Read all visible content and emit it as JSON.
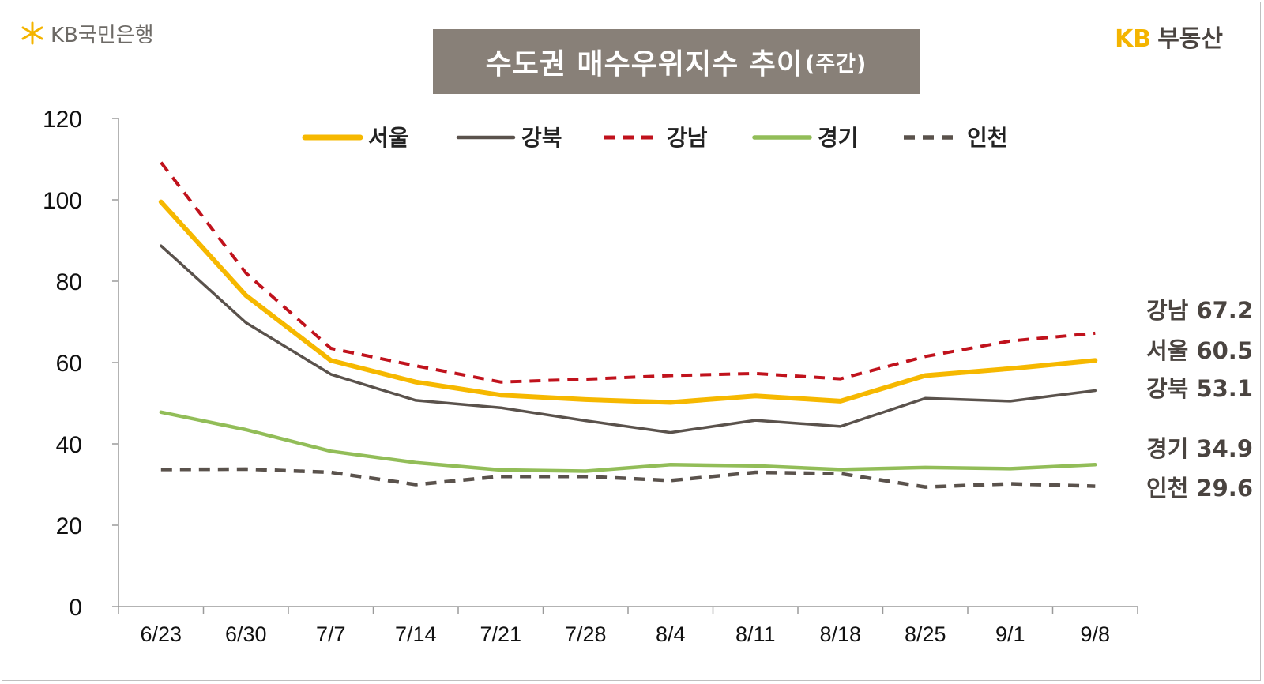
{
  "branding": {
    "left_logo_text": "KB국민은행",
    "left_logo_icon": "kb-star-icon",
    "right_logo_kb": "KB",
    "right_logo_text": "부동산"
  },
  "title": {
    "main": "수도권 매수우위지수 추이",
    "sub": "(주간)"
  },
  "colors": {
    "서울": "#f6b800",
    "강북": "#5a524c",
    "강남": "#c0121c",
    "경기": "#92bd58",
    "인천": "#5a524c",
    "title_bg": "#888078"
  },
  "chart_data": {
    "type": "line",
    "title": "수도권 매수우위지수 추이(주간)",
    "xlabel": "",
    "ylabel": "",
    "categories": [
      "6/23",
      "6/30",
      "7/7",
      "7/14",
      "7/21",
      "7/28",
      "8/4",
      "8/11",
      "8/18",
      "8/25",
      "9/1",
      "9/8"
    ],
    "yticks": [
      0,
      20,
      40,
      60,
      80,
      100,
      120
    ],
    "ylim": [
      0,
      120
    ],
    "grid": false,
    "legend_position": "top",
    "series": [
      {
        "name": "서울",
        "style": "solid",
        "values": [
          99.5,
          76.5,
          60.5,
          55.2,
          52.0,
          50.9,
          50.2,
          51.8,
          50.5,
          56.8,
          58.5,
          60.5
        ]
      },
      {
        "name": "강북",
        "style": "solid",
        "values": [
          88.7,
          69.8,
          57.1,
          50.7,
          48.9,
          45.7,
          42.8,
          45.8,
          44.3,
          51.2,
          50.5,
          53.1
        ]
      },
      {
        "name": "강남",
        "style": "dashed",
        "values": [
          109.2,
          82.0,
          63.5,
          59.2,
          55.2,
          55.9,
          56.8,
          57.3,
          56.0,
          61.5,
          65.3,
          67.2
        ]
      },
      {
        "name": "경기",
        "style": "solid",
        "values": [
          47.8,
          43.5,
          38.2,
          35.4,
          33.6,
          33.3,
          34.9,
          34.6,
          33.7,
          34.2,
          33.9,
          34.9
        ]
      },
      {
        "name": "인천",
        "style": "dashed",
        "values": [
          33.7,
          33.8,
          33.0,
          30.0,
          32.0,
          32.0,
          31.0,
          33.0,
          32.7,
          29.4,
          30.2,
          29.6
        ]
      }
    ],
    "end_labels": [
      {
        "series": "강남",
        "text": "강남 67.2"
      },
      {
        "series": "서울",
        "text": "서울 60.5"
      },
      {
        "series": "강북",
        "text": "강북 53.1"
      },
      {
        "series": "경기",
        "text": "경기 34.9"
      },
      {
        "series": "인천",
        "text": "인천 29.6"
      }
    ]
  }
}
